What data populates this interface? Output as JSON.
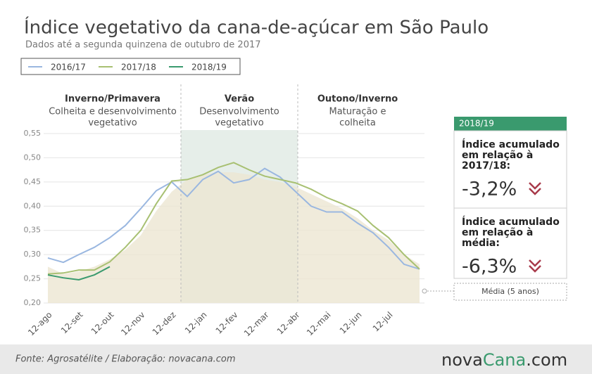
{
  "chart_data": {
    "type": "line",
    "title": "Índice vegetativo da cana-de-açúcar em São Paulo",
    "subtitle": "Dados até a segunda quinzena de outubro de 2017",
    "categories": [
      "12-ago",
      null,
      "12-set",
      null,
      "12-out",
      null,
      "12-nov",
      null,
      "12-dez",
      null,
      "12-jan",
      null,
      "12-fev",
      null,
      "12-mar",
      null,
      "12-abr",
      null,
      "12-mai",
      null,
      "12-jun",
      null,
      "12-jul",
      null,
      null
    ],
    "ylim": [
      0.2,
      0.55
    ],
    "yticks": [
      {
        "value": 0.2,
        "label": "0,20"
      },
      {
        "value": 0.25,
        "label": "0,25"
      },
      {
        "value": 0.3,
        "label": "0,30"
      },
      {
        "value": 0.35,
        "label": "0,35"
      },
      {
        "value": 0.4,
        "label": "0,40"
      },
      {
        "value": 0.45,
        "label": "0,45"
      },
      {
        "value": 0.5,
        "label": "0,50"
      },
      {
        "value": 0.55,
        "label": "0,55"
      }
    ],
    "grid": true,
    "series": [
      {
        "name": "2016/17",
        "color": "#9ab7e0",
        "values": [
          0.293,
          0.284,
          0.3,
          0.315,
          0.335,
          0.36,
          0.395,
          0.432,
          0.45,
          0.42,
          0.455,
          0.472,
          0.448,
          0.455,
          0.478,
          0.46,
          0.43,
          0.4,
          0.388,
          0.388,
          0.365,
          0.345,
          0.315,
          0.28,
          0.27
        ]
      },
      {
        "name": "2017/18",
        "color": "#a8c072",
        "values": [
          0.26,
          0.262,
          0.268,
          0.268,
          0.285,
          0.315,
          0.35,
          0.405,
          0.452,
          0.455,
          0.465,
          0.48,
          0.49,
          0.475,
          0.462,
          0.455,
          0.448,
          0.435,
          0.418,
          0.405,
          0.39,
          0.36,
          0.335,
          0.3,
          0.27
        ]
      },
      {
        "name": "2018/19",
        "color": "#3a9a6e",
        "values": [
          0.258,
          0.252,
          0.248,
          0.258,
          0.275,
          null,
          null,
          null,
          null,
          null,
          null,
          null,
          null,
          null,
          null,
          null,
          null,
          null,
          null,
          null,
          null,
          null,
          null,
          null,
          null
        ]
      },
      {
        "name": "Média (5 anos)",
        "color": "#ece6d2",
        "area": true,
        "values": [
          0.275,
          0.26,
          0.265,
          0.275,
          0.29,
          0.31,
          0.34,
          0.39,
          0.43,
          0.455,
          0.465,
          0.47,
          0.47,
          0.465,
          0.455,
          0.45,
          0.44,
          0.425,
          0.41,
          0.395,
          0.375,
          0.35,
          0.33,
          0.3,
          0.28
        ]
      }
    ],
    "seasons": [
      {
        "title": "Inverno/Primavera",
        "lines": [
          "Colheita e desenvolvimento",
          "vegetativo"
        ]
      },
      {
        "title": "Verão",
        "lines": [
          "Desenvolvimento",
          "vegetativo"
        ]
      },
      {
        "title": "Outono/Inverno",
        "lines": [
          "Maturação e",
          "colheita"
        ]
      }
    ],
    "panel": {
      "header": "2018/19",
      "items": [
        {
          "label": [
            "Índice acumulado",
            "em relação à",
            "2017/18:"
          ],
          "value": "-3,2%"
        },
        {
          "label": [
            "Índice acumulado",
            "em relação à",
            "média:"
          ],
          "value": "-6,3%"
        }
      ]
    },
    "source": "Fonte: Agrosatélite / Elaboração: novacana.com",
    "logo": [
      "nova",
      "Cana",
      ".com"
    ]
  }
}
